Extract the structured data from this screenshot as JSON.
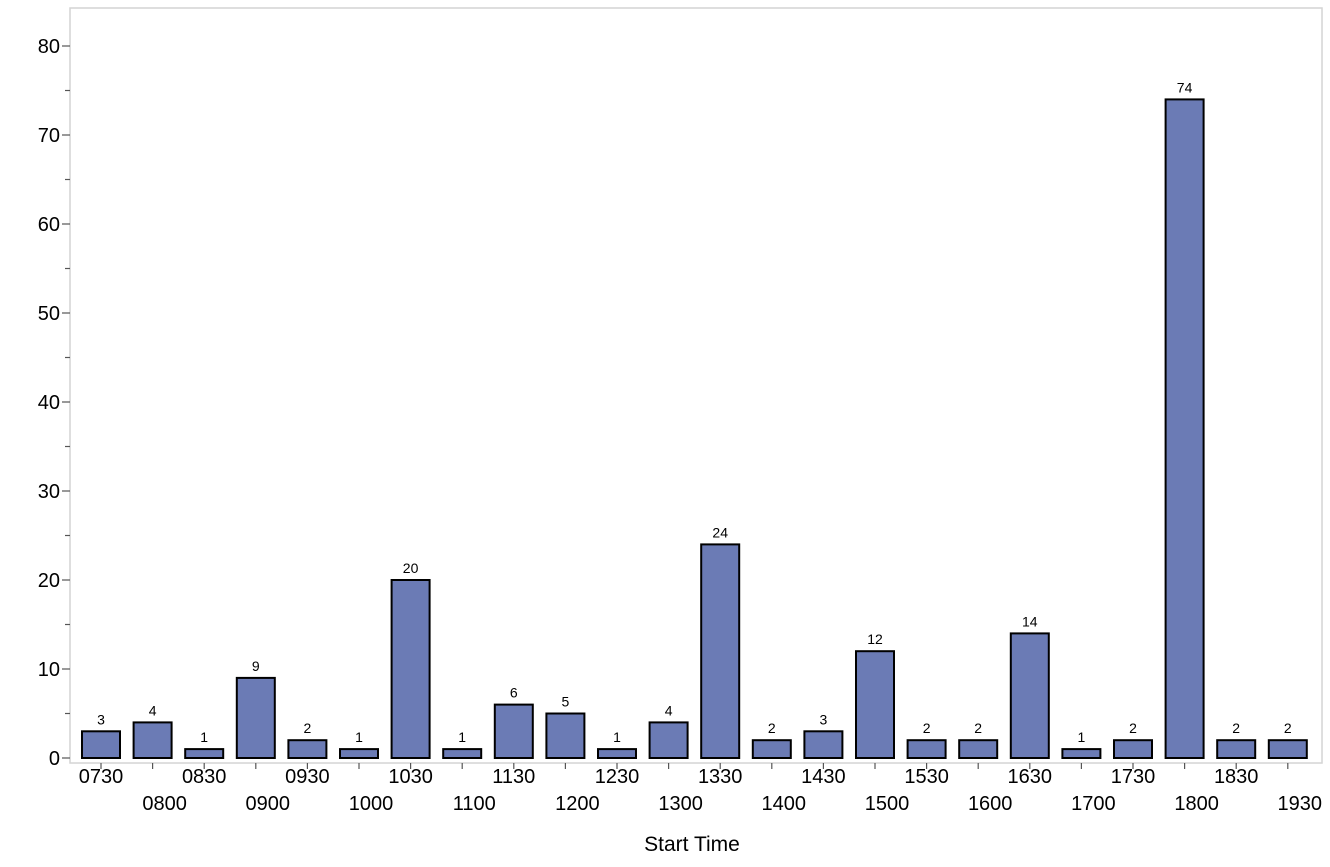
{
  "chart_data": {
    "type": "bar",
    "title": "",
    "xlabel": "Start Time",
    "ylabel": "",
    "ylim": [
      0,
      81
    ],
    "yticks": [
      0,
      10,
      20,
      30,
      40,
      50,
      60,
      70,
      80
    ],
    "y_minor_step": 5,
    "categories": [
      "0730",
      "0800",
      "0830",
      "0900",
      "0930",
      "1000",
      "1030",
      "1100",
      "1130",
      "1200",
      "1230",
      "1300",
      "1330",
      "1400",
      "1430",
      "1500",
      "1530",
      "1600",
      "1630",
      "1700",
      "1730",
      "1800",
      "1830",
      "1930"
    ],
    "values": [
      3,
      4,
      1,
      9,
      2,
      1,
      20,
      1,
      6,
      5,
      1,
      4,
      24,
      2,
      3,
      12,
      2,
      2,
      14,
      1,
      2,
      74,
      2,
      2
    ],
    "bar_color": "#6b7bb5",
    "bar_edge_color": "#000000",
    "data_labels": true,
    "grid": false,
    "x_tick_labels_staggered": true
  }
}
